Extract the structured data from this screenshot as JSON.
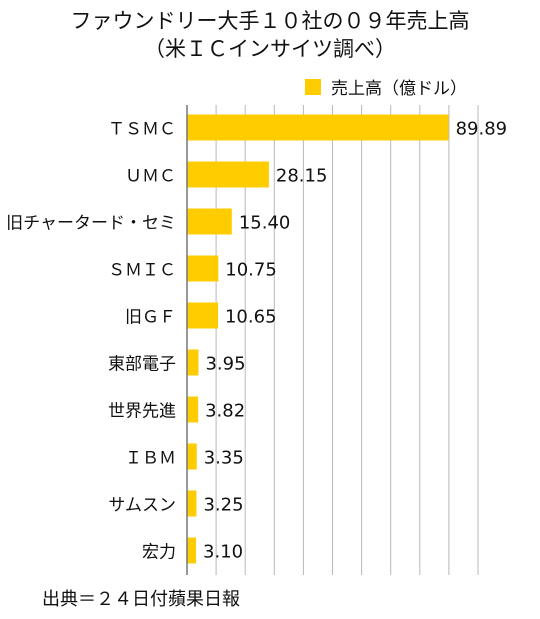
{
  "title": "ファウンドリー大手１０社の０９年売上高",
  "subtitle": "（米ＩＣインサイツ調べ）",
  "source": "出典＝２４日付蘋果日報",
  "colors": {
    "bar": "#FFCC00",
    "grid": "#b8b8b8",
    "axis": "#777777",
    "text": "#111111"
  },
  "chart_data": {
    "type": "bar",
    "orientation": "horizontal",
    "categories": [
      "ＴＳＭＣ",
      "ＵＭＣ",
      "旧チャータード・セミ",
      "ＳＭＩＣ",
      "旧ＧＦ",
      "東部電子",
      "世界先進",
      "ＩＢＭ",
      "サムスン",
      "宏力"
    ],
    "series": [
      {
        "name": "売上高（億ドル）",
        "values": [
          89.89,
          28.15,
          15.4,
          10.75,
          10.65,
          3.95,
          3.82,
          3.35,
          3.25,
          3.1
        ]
      }
    ],
    "value_labels": [
      "89.89",
      "28.15",
      "15.40",
      "10.75",
      "10.65",
      "3.95",
      "3.82",
      "3.35",
      "3.25",
      "3.10"
    ],
    "xlim": [
      0,
      100
    ],
    "grid": true,
    "legend": "top-right"
  }
}
